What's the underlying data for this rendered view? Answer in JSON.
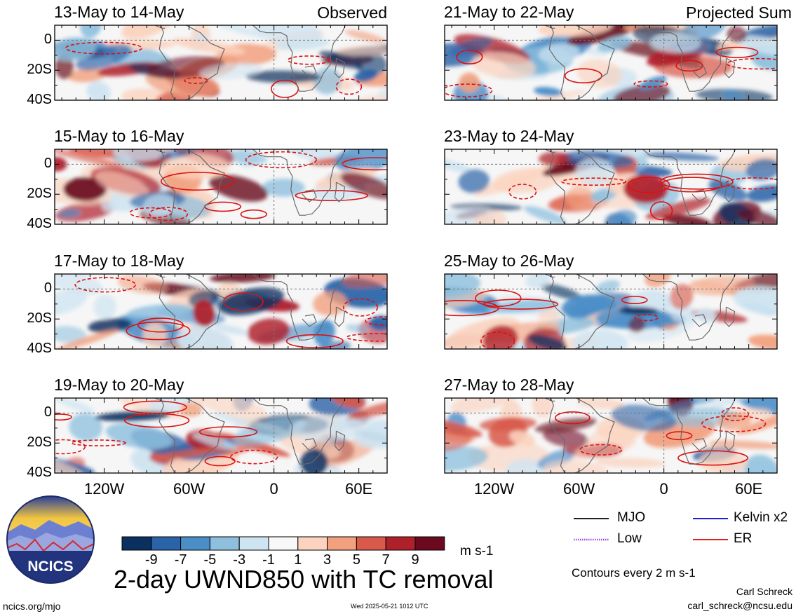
{
  "panels": [
    {
      "title": "13-May to 14-May",
      "tag": "Observed"
    },
    {
      "title": "15-May to 16-May",
      "tag": ""
    },
    {
      "title": "17-May to 18-May",
      "tag": ""
    },
    {
      "title": "19-May to 20-May",
      "tag": ""
    },
    {
      "title": "21-May to 22-May",
      "tag": "Projected Sum"
    },
    {
      "title": "23-May to 24-May",
      "tag": ""
    },
    {
      "title": "25-May to 26-May",
      "tag": ""
    },
    {
      "title": "27-May to 28-May",
      "tag": ""
    }
  ],
  "lat_ticks": [
    "0",
    "20S",
    "40S"
  ],
  "lon_ticks": [
    "120W",
    "60W",
    "0",
    "60E"
  ],
  "map": {
    "lon_range": [
      -155,
      80
    ],
    "lat_range": [
      -40,
      10
    ],
    "grid": "dashed at 0 lat and 0 lon"
  },
  "colorbar": {
    "levels": [
      "-9",
      "-7",
      "-5",
      "-3",
      "-1",
      "1",
      "3",
      "5",
      "7",
      "9"
    ],
    "colors": [
      "#0a3060",
      "#2a63a8",
      "#4a8ec8",
      "#8ec0de",
      "#cfe4f1",
      "#f8f8f8",
      "#fbd3be",
      "#f2a07e",
      "#d9594a",
      "#b0202a",
      "#6b0a1e"
    ],
    "units": "m s-1"
  },
  "legend": {
    "items": [
      {
        "label": "MJO",
        "color": "#000000",
        "style": "solid"
      },
      {
        "label": "Kelvin x2",
        "color": "#0000cc",
        "style": "solid"
      },
      {
        "label": "Low",
        "color": "#a040e0",
        "style": "dotted"
      },
      {
        "label": "ER",
        "color": "#dd0000",
        "style": "solid"
      }
    ],
    "contour_note": "Contours every 2 m s-1"
  },
  "main_title": "2-day UWND850 with TC removal",
  "logo_text": "NCICS",
  "footer": {
    "url": "ncics.org/mjo",
    "timestamp": "Wed 2025-05-21 1012 UTC",
    "author": "Carl Schreck",
    "email": "carl_schreck@ncsu.edu"
  }
}
